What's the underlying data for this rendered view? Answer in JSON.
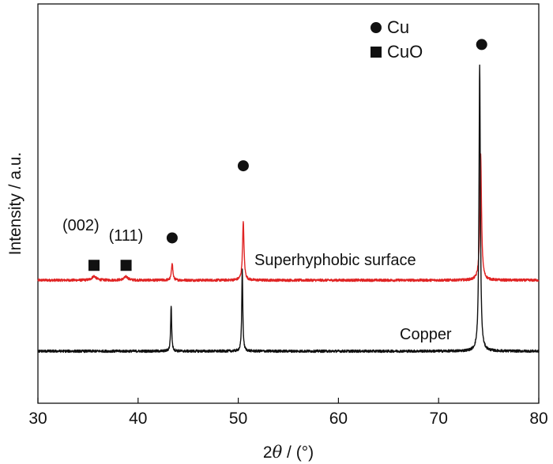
{
  "chart_data": {
    "type": "line",
    "xlabel_prefix": "2",
    "xlabel_theta": "θ",
    "xlabel_suffix": " / (°)",
    "ylabel": "Intensity / a.u.",
    "xlim": [
      30,
      80
    ],
    "x_ticks": [
      30,
      40,
      50,
      60,
      70,
      80
    ],
    "y_ticks": [],
    "grid": false,
    "legend": [
      {
        "label": "Cu",
        "marker": "circle",
        "color": "#111111"
      },
      {
        "label": "CuO",
        "marker": "square",
        "color": "#111111"
      }
    ],
    "series": [
      {
        "name": "Superhyphobic surface",
        "color": "#e02424",
        "baseline": 0.62,
        "peaks": [
          {
            "x": 35.6,
            "h": 0.035,
            "w": 0.25
          },
          {
            "x": 38.8,
            "h": 0.03,
            "w": 0.25
          },
          {
            "x": 43.4,
            "h": 0.155,
            "w": 0.08
          },
          {
            "x": 50.5,
            "h": 0.505,
            "w": 0.09
          },
          {
            "x": 74.2,
            "h": 1.095,
            "w": 0.1
          }
        ]
      },
      {
        "name": "Copper",
        "color": "#111111",
        "baseline": 0.0,
        "peaks": [
          {
            "x": 43.3,
            "h": 0.4,
            "w": 0.06
          },
          {
            "x": 50.4,
            "h": 0.725,
            "w": 0.06
          },
          {
            "x": 74.1,
            "h": 2.5,
            "w": 0.08
          }
        ]
      }
    ],
    "annotations": [
      {
        "text": "(002)",
        "x": 35.6
      },
      {
        "text": "(111)",
        "x": 38.8
      }
    ],
    "peak_markers": [
      {
        "marker": "square",
        "x": 35.6,
        "y": 0.75
      },
      {
        "marker": "square",
        "x": 38.8,
        "y": 0.75
      },
      {
        "marker": "circle",
        "x": 43.4,
        "y": 0.99
      },
      {
        "marker": "circle",
        "x": 50.5,
        "y": 1.62
      },
      {
        "marker": "circle",
        "x": 74.3,
        "y": 2.68
      }
    ]
  }
}
